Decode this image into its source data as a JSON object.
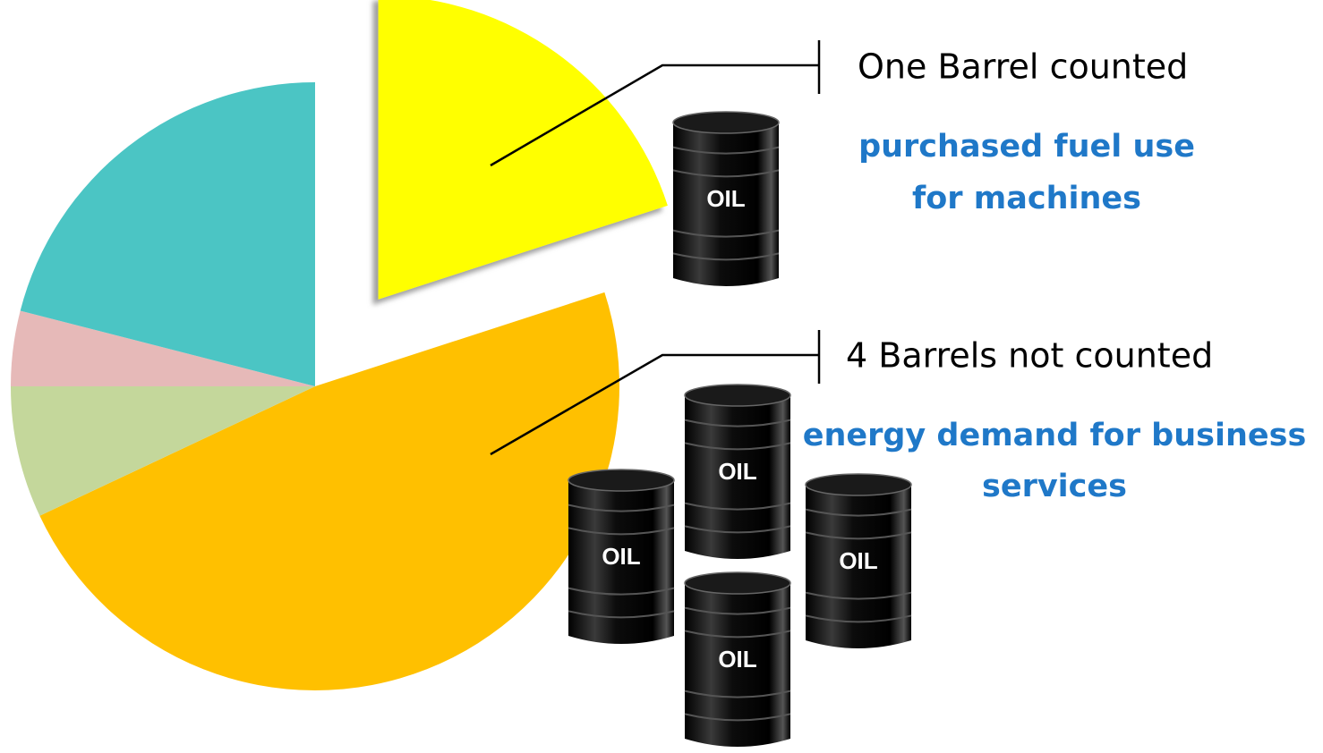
{
  "chart_data": {
    "type": "pie",
    "categories": [
      null,
      null,
      null,
      null,
      null
    ],
    "values": [
      20,
      48,
      7,
      4,
      21
    ],
    "colors": [
      "#ffff00",
      "#ffc000",
      "#c4d79b",
      "#e6b9b8",
      "#4bc5c4"
    ],
    "explode": [
      true,
      false,
      false,
      false,
      false
    ],
    "annotations": [
      {
        "title": "One Barrel counted",
        "lines": [
          "purchased fuel use",
          "for machines"
        ]
      },
      {
        "title": "4 Barrels not counted",
        "lines": [
          "energy demand for business",
          "services"
        ]
      }
    ],
    "barrel_labels": [
      "OIL",
      "OIL",
      "OIL",
      "OIL",
      "OIL"
    ]
  }
}
